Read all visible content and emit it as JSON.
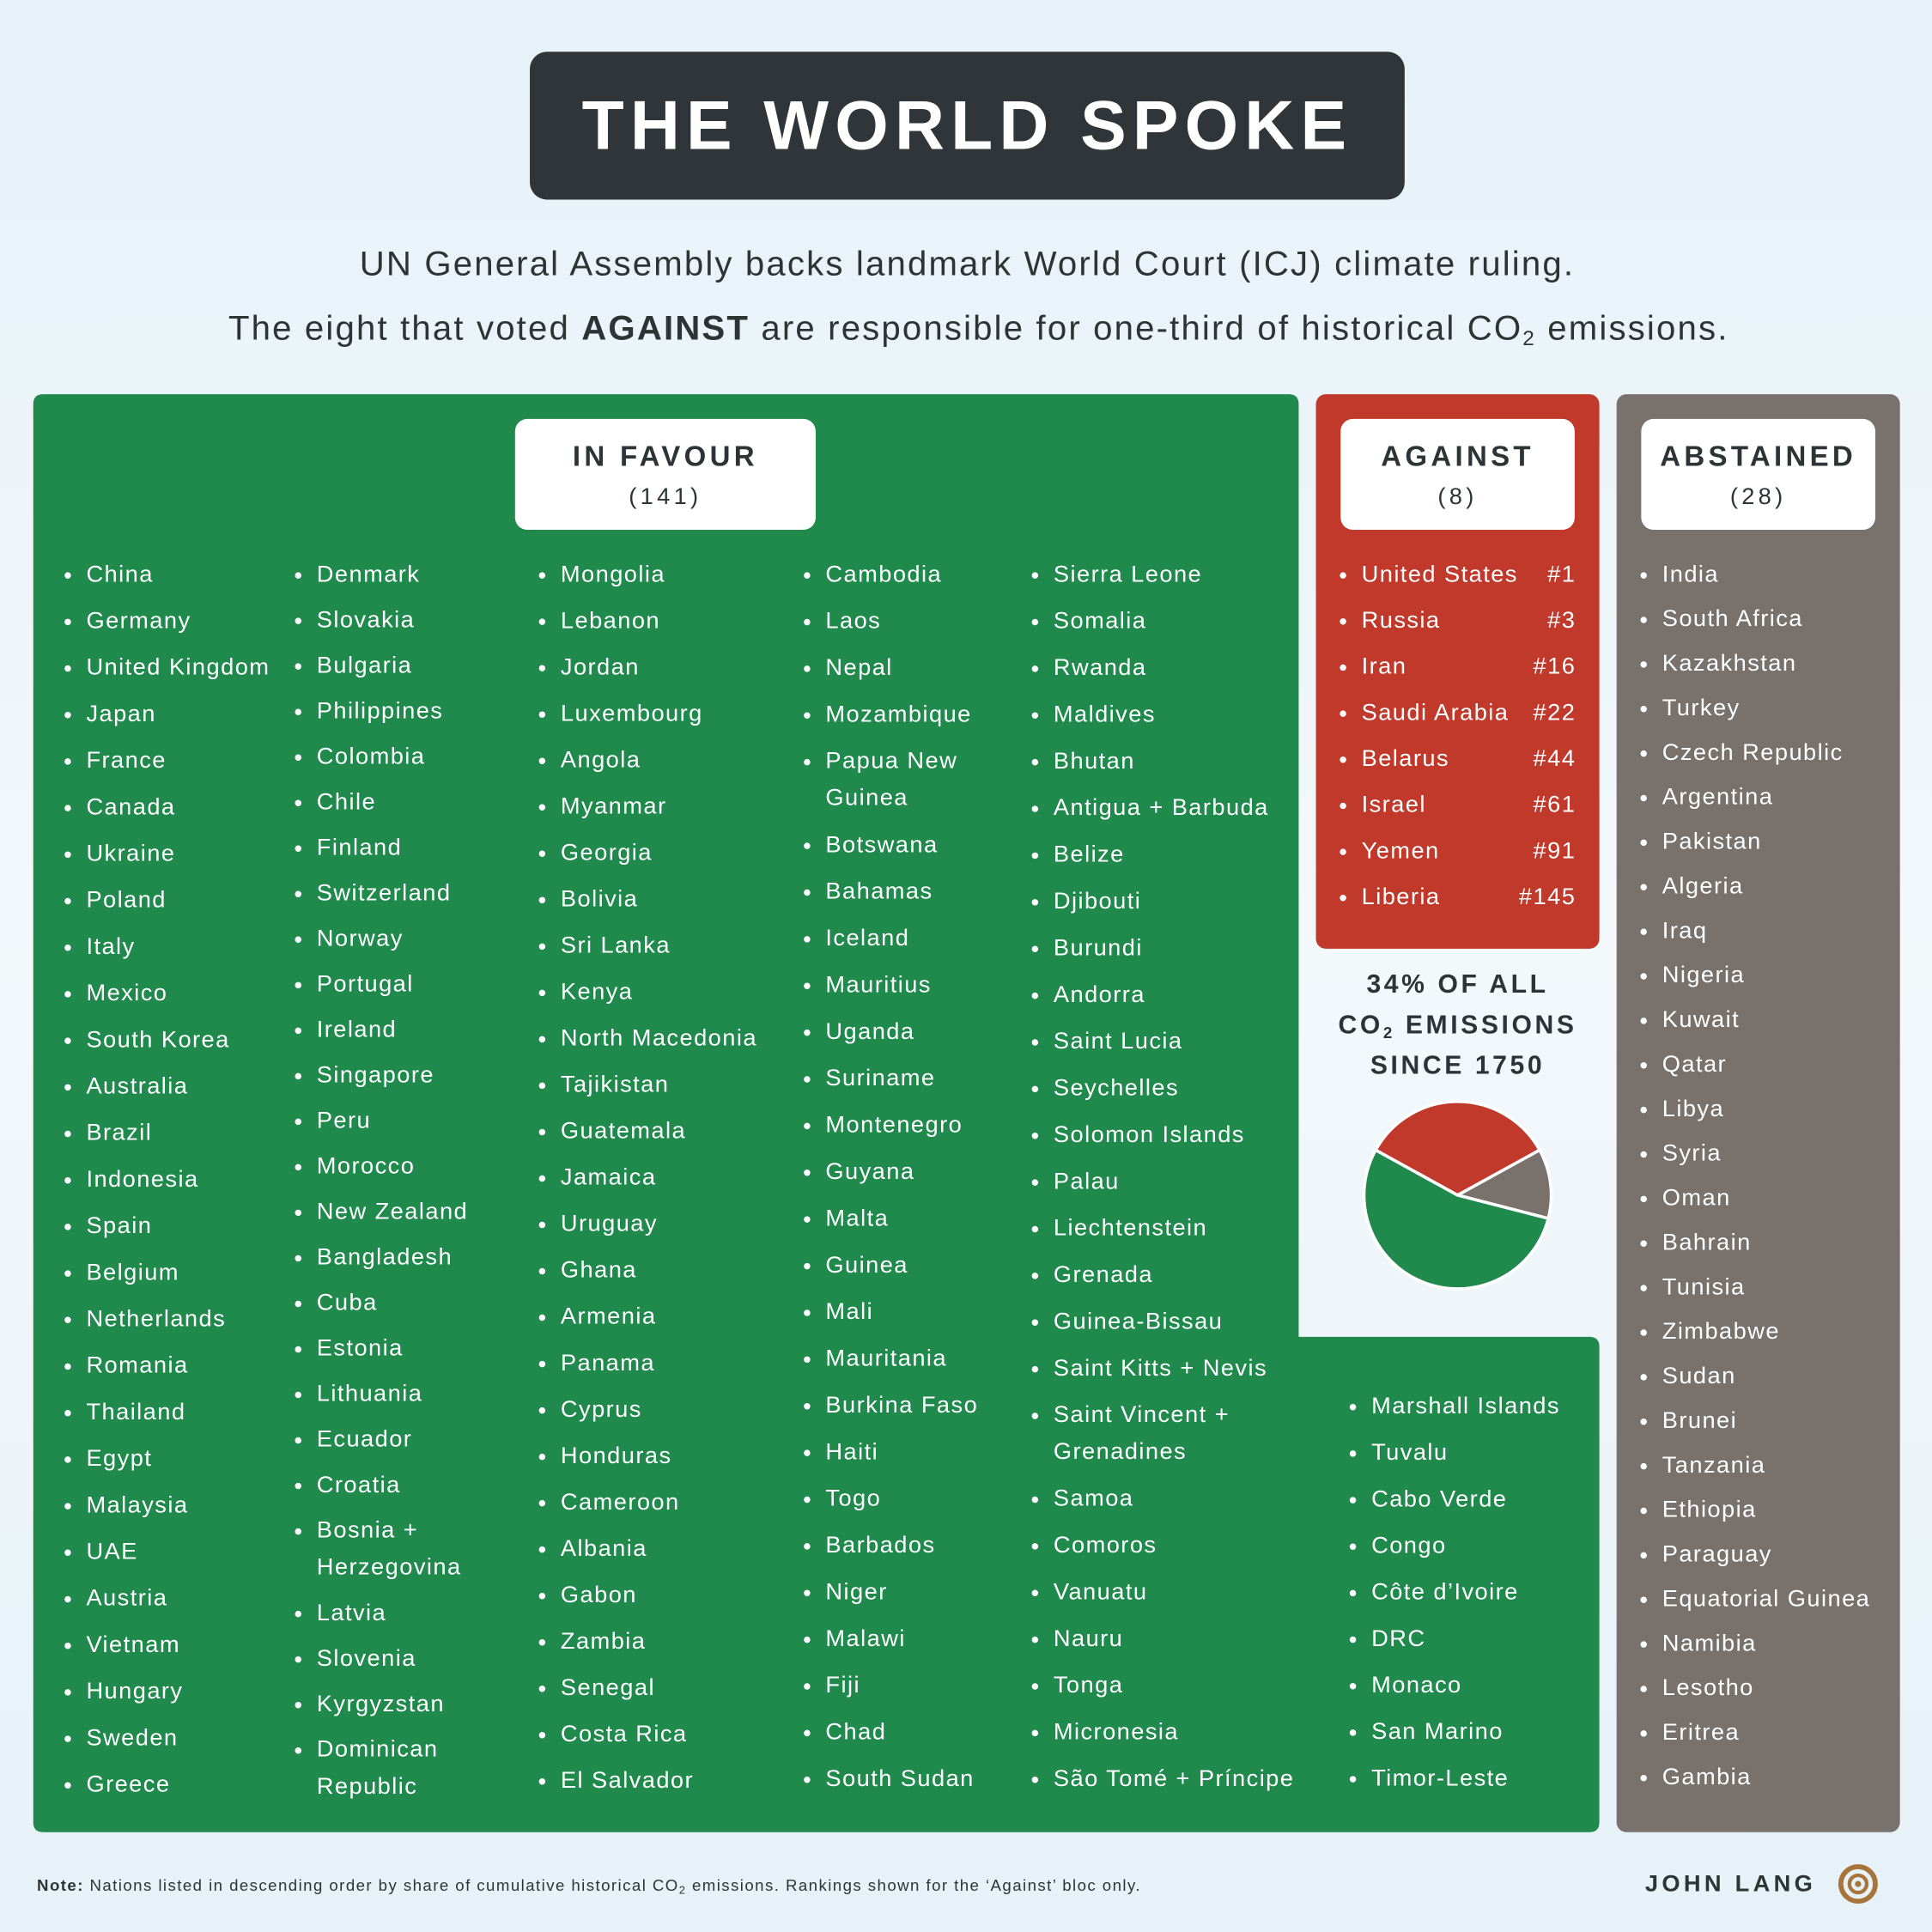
{
  "header": {
    "title": "THE WORLD SPOKE",
    "subtitle_line1": "UN General Assembly backs landmark World Court (ICJ) climate ruling.",
    "subtitle_line2": [
      "The eight that voted ",
      "AGAINST",
      " are responsible for one-third of historical CO",
      "2",
      " emissions."
    ]
  },
  "in_favour": {
    "label": "IN FAVOUR",
    "count": "(141)",
    "color": "#1f8a4c",
    "columns": [
      [
        "China",
        "Germany",
        "United Kingdom",
        "Japan",
        "France",
        "Canada",
        "Ukraine",
        "Poland",
        "Italy",
        "Mexico",
        "South Korea",
        "Australia",
        "Brazil",
        "Indonesia",
        "Spain",
        "Belgium",
        "Netherlands",
        "Romania",
        "Thailand",
        "Egypt",
        "Malaysia",
        "UAE",
        "Austria",
        "Vietnam",
        "Hungary",
        "Sweden",
        "Greece"
      ],
      [
        "Denmark",
        "Slovakia",
        "Bulgaria",
        "Philippines",
        "Colombia",
        "Chile",
        "Finland",
        "Switzerland",
        "Norway",
        "Portugal",
        "Ireland",
        "Singapore",
        "Peru",
        "Morocco",
        "New Zealand",
        "Bangladesh",
        "Cuba",
        "Estonia",
        "Lithuania",
        "Ecuador",
        "Croatia",
        "Bosnia + Herzegovina",
        "Latvia",
        "Slovenia",
        "Kyrgyzstan",
        "Dominican Republic"
      ],
      [
        "Mongolia",
        "Lebanon",
        "Jordan",
        "Luxembourg",
        "Angola",
        "Myanmar",
        "Georgia",
        "Bolivia",
        "Sri Lanka",
        "Kenya",
        "North Macedonia",
        "Tajikistan",
        "Guatemala",
        "Jamaica",
        "Uruguay",
        "Ghana",
        "Armenia",
        "Panama",
        "Cyprus",
        "Honduras",
        "Cameroon",
        "Albania",
        "Gabon",
        "Zambia",
        "Senegal",
        "Costa Rica",
        "El Salvador"
      ],
      [
        "Cambodia",
        "Laos",
        "Nepal",
        "Mozambique",
        "Papua New Guinea",
        "Botswana",
        "Bahamas",
        "Iceland",
        "Mauritius",
        "Uganda",
        "Suriname",
        "Montenegro",
        "Guyana",
        "Malta",
        "Guinea",
        "Mali",
        "Mauritania",
        "Burkina Faso",
        "Haiti",
        "Togo",
        "Barbados",
        "Niger",
        "Malawi",
        "Fiji",
        "Chad",
        "South Sudan"
      ],
      [
        "Sierra Leone",
        "Somalia",
        "Rwanda",
        "Maldives",
        "Bhutan",
        "Antigua + Barbuda",
        "Belize",
        "Djibouti",
        "Burundi",
        "Andorra",
        "Saint Lucia",
        "Seychelles",
        "Solomon Islands",
        "Palau",
        "Liechtenstein",
        "Grenada",
        "Guinea-Bissau",
        "Saint Kitts + Nevis",
        "Saint Vincent + Grenadines",
        "Samoa",
        "Comoros",
        "Vanuatu",
        "Nauru",
        "Tonga",
        "Micronesia",
        "São Tomé + Príncipe"
      ],
      [
        "Marshall Islands",
        "Tuvalu",
        "Cabo Verde",
        "Congo",
        "Côte d’Ivoire",
        "DRC",
        "Monaco",
        "San Marino",
        "Timor-Leste"
      ]
    ]
  },
  "against": {
    "label": "AGAINST",
    "count": "(8)",
    "color": "#c0392b",
    "items": [
      {
        "name": "United States",
        "rank": "#1"
      },
      {
        "name": "Russia",
        "rank": "#3"
      },
      {
        "name": "Iran",
        "rank": "#16"
      },
      {
        "name": "Saudi Arabia",
        "rank": "#22"
      },
      {
        "name": "Belarus",
        "rank": "#44"
      },
      {
        "name": "Israel",
        "rank": "#61"
      },
      {
        "name": "Yemen",
        "rank": "#91"
      },
      {
        "name": "Liberia",
        "rank": "#145"
      }
    ]
  },
  "abstained": {
    "label": "ABSTAINED",
    "count": "(28)",
    "color": "#78716c",
    "items": [
      "India",
      "South Africa",
      "Kazakhstan",
      "Turkey",
      "Czech Republic",
      "Argentina",
      "Pakistan",
      "Algeria",
      "Iraq",
      "Nigeria",
      "Kuwait",
      "Qatar",
      "Libya",
      "Syria",
      "Oman",
      "Bahrain",
      "Tunisia",
      "Zimbabwe",
      "Sudan",
      "Brunei",
      "Tanzania",
      "Ethiopia",
      "Paraguay",
      "Equatorial Guinea",
      "Namibia",
      "Lesotho",
      "Eritrea",
      "Gambia"
    ]
  },
  "emissions": {
    "caption_line1": "34% OF ALL",
    "caption_line2": [
      "CO",
      "2",
      " EMISSIONS"
    ],
    "caption_line3": "SINCE 1750",
    "pie": {
      "values": [
        34,
        12,
        54
      ],
      "colors": [
        "#c0392b",
        "#78716c",
        "#1f8a4c"
      ]
    }
  },
  "footer": {
    "note_label": "Note:",
    "note": [
      " Nations listed in descending order by share of cumulative historical CO",
      "2",
      " emissions. Rankings shown for the ‘Against’ bloc only."
    ],
    "author": "JOHN LANG"
  }
}
